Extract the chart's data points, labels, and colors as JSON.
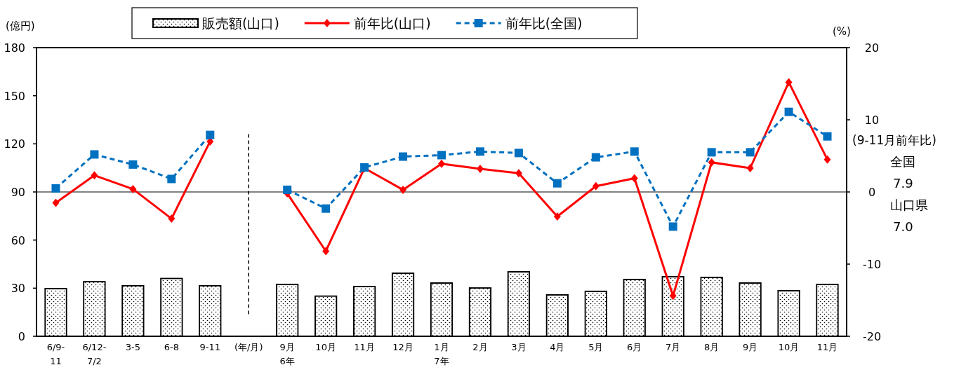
{
  "chart_data": {
    "type": "bar",
    "ylabel": "(億円)",
    "y2label": "(%)",
    "categories": [
      "6/9-11",
      "6/12-7/2",
      "3-5",
      "6-8",
      "9-11",
      "(年/月)",
      "9月 6年",
      "10月",
      "11月",
      "12月",
      "1月 7年",
      "2月",
      "3月",
      "4月",
      "5月",
      "6月",
      "7月",
      "8月",
      "9月",
      "10月",
      "11月"
    ],
    "series": [
      {
        "name": "販売額(山口)",
        "color": "#ffffff",
        "values": [
          29.7,
          34,
          31.5,
          36,
          31.5,
          null,
          32.3,
          25,
          31,
          39.3,
          33.2,
          30.1,
          40.2,
          25.8,
          28,
          35.4,
          37.1,
          36.7,
          33.2,
          28.4,
          32.3
        ]
      },
      {
        "name": "前年比(山口)",
        "type": "line",
        "axis": "y2",
        "color": "#ff0000",
        "marker": "diamond",
        "line_style": "solid",
        "values": [
          -1.5,
          2.3,
          0.4,
          -3.7,
          7.0,
          null,
          -0.2,
          -8.2,
          3.3,
          0.3,
          3.9,
          3.2,
          2.6,
          -3.4,
          0.8,
          1.9,
          -14.4,
          4.1,
          3.3,
          15.2,
          4.5
        ]
      },
      {
        "name": "前年比(全国)",
        "type": "line",
        "axis": "y2",
        "color": "#0070c0",
        "marker": "square",
        "line_style": "dashed",
        "values": [
          0.5,
          5.2,
          3.8,
          1.8,
          7.9,
          null,
          0.3,
          -2.3,
          3.4,
          4.9,
          5.1,
          5.6,
          5.4,
          1.2,
          4.8,
          5.6,
          -4.8,
          5.5,
          5.5,
          11.1,
          7.7
        ]
      }
    ],
    "ylim": [
      0,
      180
    ],
    "yticks": [
      0,
      30,
      60,
      90,
      120,
      150,
      180
    ],
    "y2lim": [
      -20,
      20
    ],
    "y2ticks": [
      -20,
      -10,
      0,
      10,
      20
    ],
    "ref_lines": [
      {
        "axis": "y2",
        "value": 0,
        "color": "#595959",
        "line_style": "solid"
      },
      {
        "axis": "x",
        "value": "(年/月)",
        "color": "#000000",
        "line_style": "dashed"
      }
    ],
    "annotations": [
      "(9-11月前年比)",
      "全国",
      "7.9",
      "山口県",
      "7.0"
    ],
    "legend": "top",
    "grid": false
  }
}
